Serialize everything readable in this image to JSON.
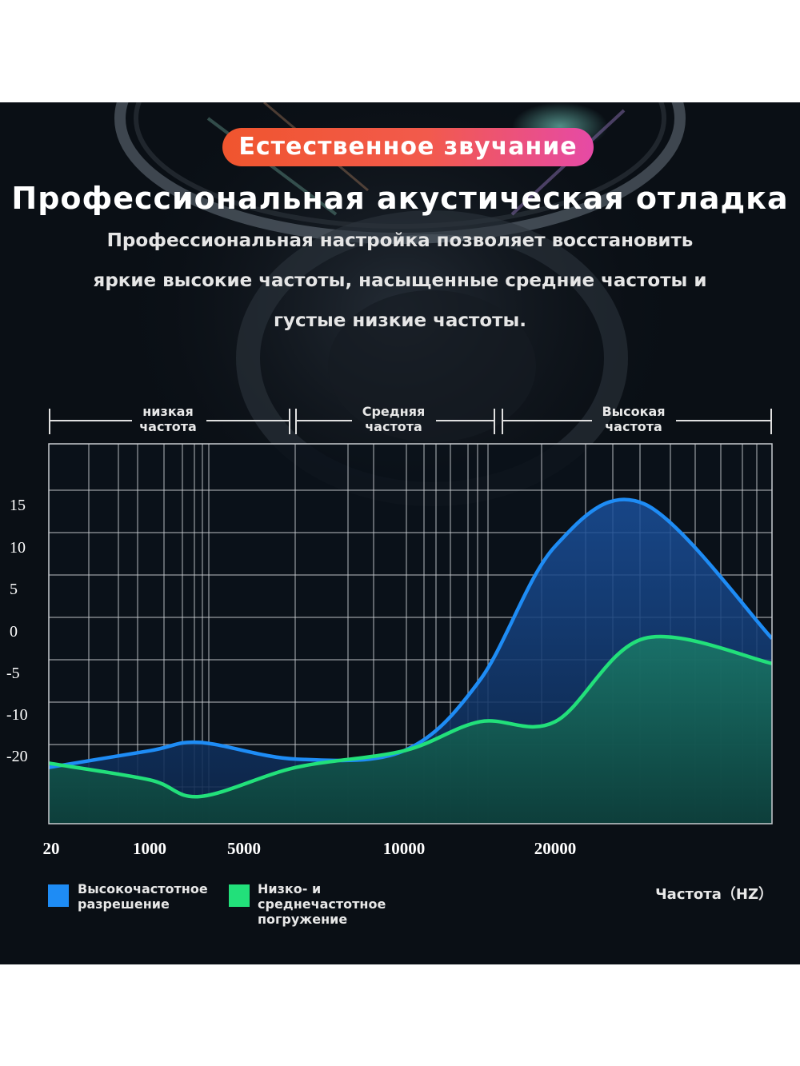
{
  "badge": "Естественное звучание",
  "headline": "Профессиональная акустическая отладка",
  "subtitle_lines": [
    "Профессиональная настройка позволяет восстановить",
    "яркие высокие частоты, насыщенные средние частоты и",
    "густые низкие частоты."
  ],
  "bands": [
    {
      "label_line1": "низкая",
      "label_line2": "частота"
    },
    {
      "label_line1": "Средняя",
      "label_line2": "частота"
    },
    {
      "label_line1": "Высокая",
      "label_line2": "частота"
    }
  ],
  "legend": [
    {
      "label": "Высокочастотное\nразрешение",
      "color": "#1e8cf5"
    },
    {
      "label": "Низко- и\nсреднечастотное\nпогружение",
      "color": "#22e07a"
    }
  ],
  "axis_unit": "Частота（HZ）",
  "chart_data": {
    "type": "area",
    "x_ticks": [
      "20",
      "1000",
      "5000",
      "10000",
      "20000"
    ],
    "y_ticks": [
      15,
      10,
      5,
      0,
      -5,
      -10,
      -20
    ],
    "series": [
      {
        "name": "Высокочастотное разрешение",
        "color": "#1e8cf5",
        "points": [
          [
            "20",
            -23
          ],
          [
            "1000",
            -19
          ],
          [
            "1000–5000",
            -17
          ],
          [
            "5000",
            -21
          ],
          [
            "10000",
            -19
          ],
          [
            "10000–20000",
            -6
          ],
          [
            "20000",
            10
          ],
          [
            "20000+",
            15
          ],
          [
            "max",
            -1
          ]
        ]
      },
      {
        "name": "Низко- и среднечастотное погружение",
        "color": "#22e07a",
        "points": [
          [
            "20",
            -22
          ],
          [
            "1000",
            -26
          ],
          [
            "1000–5000",
            -30
          ],
          [
            "5000",
            -23
          ],
          [
            "10000",
            -19
          ],
          [
            "10000–20000",
            -12
          ],
          [
            "20000",
            -12
          ],
          [
            "20000+",
            -1
          ],
          [
            "max",
            -4
          ]
        ]
      }
    ]
  }
}
